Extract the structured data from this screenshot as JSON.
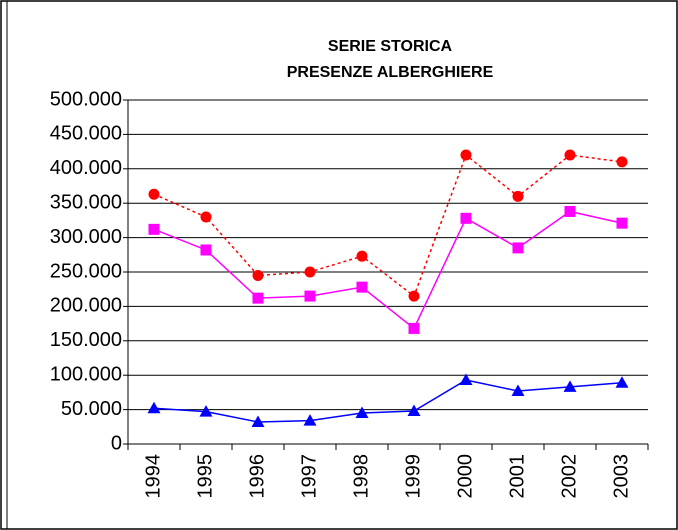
{
  "chart_data": {
    "type": "line",
    "title": [
      "SERIE STORICA",
      "PRESENZE ALBERGHIERE"
    ],
    "categories": [
      "1994",
      "1995",
      "1996",
      "1997",
      "1998",
      "1999",
      "2000",
      "2001",
      "2002",
      "2003"
    ],
    "series": [
      {
        "color": "#ff0000",
        "marker": "circle",
        "dash": "dotted",
        "values": [
          363000,
          330000,
          245000,
          250000,
          273000,
          215000,
          420000,
          360000,
          420000,
          410000
        ]
      },
      {
        "color": "#ff00ff",
        "marker": "square",
        "dash": "solid",
        "values": [
          312000,
          282000,
          212000,
          215000,
          228000,
          168000,
          328000,
          285000,
          338000,
          321000
        ]
      },
      {
        "color": "#0000ff",
        "marker": "triangle",
        "dash": "solid",
        "values": [
          52000,
          47000,
          32000,
          34000,
          45000,
          48000,
          93000,
          77000,
          83000,
          89000
        ]
      }
    ],
    "ylim": [
      0,
      500000
    ],
    "yticks": [
      0,
      {
        "value": 50000,
        "label": "50.000"
      },
      {
        "value": 100000,
        "label": "100.000"
      },
      {
        "value": 150000,
        "label": "150.000"
      },
      {
        "value": 200000,
        "label": "200.000"
      },
      {
        "value": 250000,
        "label": "250.000"
      },
      {
        "value": 300000,
        "label": "300.000"
      },
      {
        "value": 350000,
        "label": "350.000"
      },
      {
        "value": 400000,
        "label": "400.000"
      },
      {
        "value": 450000,
        "label": "450.000"
      },
      {
        "value": 500000,
        "label": "500.000"
      }
    ],
    "grid": true
  }
}
